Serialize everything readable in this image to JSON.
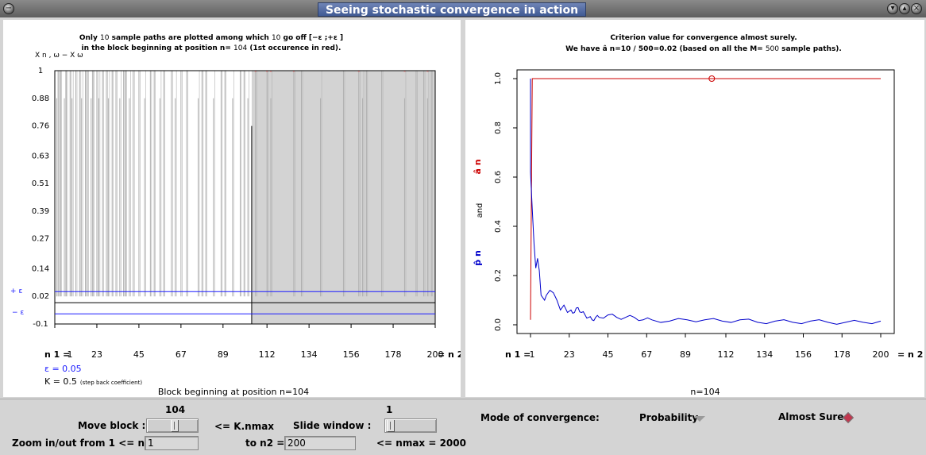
{
  "window": {
    "title": "Seeing stochastic convergence in action"
  },
  "left_panel": {
    "title_prefix": "Only ",
    "title_count": "10",
    "title_mid": " sample paths are plotted among which ",
    "title_off": "10",
    "title_suffix": " go off [−ε ;+ε ]",
    "title_line2_prefix": "in the block beginning at position n= ",
    "title_line2_pos": "104",
    "title_line2_suffix": " (1st occurence in red).",
    "ylabel": "X n , ω − X ω",
    "ytick_labels": [
      "1",
      "0.88",
      "0.76",
      "0.63",
      "0.51",
      "0.39",
      "0.27",
      "0.14",
      "0.02",
      "-0.1"
    ],
    "eps_plus_label": "+ ε",
    "eps_minus_label": "− ε",
    "n1_label": "n 1 =",
    "n2_label": "= n 2",
    "xtick_labels": [
      "1",
      "23",
      "45",
      "67",
      "89",
      "112",
      "134",
      "156",
      "178",
      "200"
    ],
    "epsilon_text": "ε = 0.05",
    "k_text": "K = 0.5",
    "k_note": "(step back coefficient)",
    "block_text": "Block beginning at position n=104",
    "colors": {
      "path": "#b0b0b0",
      "eps": "#1a1aff",
      "shade": "#d3d3d3",
      "red": "#ff8c8c"
    }
  },
  "right_panel": {
    "title_line1": "Criterion value for convergence almost surely.",
    "title_line2_prefix": "We have  â n=10 / 500=0.02 (based on all the M= ",
    "title_line2_m": "500",
    "title_line2_suffix": " sample paths).",
    "ylabel_p": "p̂ n",
    "ylabel_and": "and",
    "ylabel_a": "â n",
    "n1_label": "n 1 =",
    "n2_label": "= n 2",
    "bottom_text": "n=104",
    "colors": {
      "p_line": "#0000cc",
      "a_line": "#cc0000"
    }
  },
  "chart_data": [
    {
      "type": "line",
      "title": "Only 10 sample paths are plotted among which 10 go off [−ε ;+ε ] in the block beginning at position n= 104 (1st occurence in red).",
      "xlabel": "",
      "ylabel": "X n,ω − X ω",
      "xlim": [
        1,
        200
      ],
      "ylim": [
        -0.1,
        1
      ],
      "x_ticks": [
        1,
        23,
        45,
        67,
        89,
        112,
        134,
        156,
        178,
        200
      ],
      "y_ticks": [
        1,
        0.88,
        0.76,
        0.63,
        0.51,
        0.39,
        0.27,
        0.14,
        0.02,
        -0.1
      ],
      "epsilon": 0.05,
      "block_start": 104,
      "series": [
        {
          "values_note": "",
          "spike_positions": [
            2,
            3,
            4,
            6,
            7,
            9,
            10,
            12,
            14,
            15,
            17,
            18,
            20,
            21,
            23,
            24,
            26,
            28,
            29,
            31,
            33,
            35,
            37,
            38,
            40,
            42,
            45,
            48,
            51,
            53,
            56,
            58,
            62,
            64,
            67,
            70,
            76,
            78,
            80,
            84,
            88,
            90,
            94,
            98,
            100,
            102,
            106,
            112,
            114,
            126,
            130,
            140,
            152,
            160,
            162,
            164,
            172,
            184,
            190,
            194,
            196,
            198
          ]
        }
      ]
    },
    {
      "type": "line",
      "title": "Criterion value for convergence almost surely. We have  â n=10 / 500=0.02 (based on all the M= 500 sample paths).",
      "xlabel": "",
      "ylabel": "p̂ n and â n",
      "xlim": [
        1,
        200
      ],
      "ylim": [
        0,
        1
      ],
      "x_ticks": [
        1,
        23,
        45,
        67,
        89,
        112,
        134,
        156,
        178,
        200
      ],
      "y_ticks": [
        0.0,
        0.2,
        0.4,
        0.6,
        0.8,
        1.0
      ],
      "series": [
        {
          "values_note": "",
          "x": [
            1,
            2,
            3,
            4,
            5,
            6,
            7,
            8,
            9,
            10,
            12,
            14,
            16,
            18,
            20,
            22,
            24,
            26,
            28,
            30,
            32,
            34,
            36,
            38,
            40,
            45,
            50,
            55,
            60,
            65,
            70,
            80,
            90,
            100,
            110,
            120,
            130,
            140,
            150,
            160,
            170,
            180,
            190,
            200
          ],
          "values": [
            0.62,
            0.47,
            0.33,
            0.23,
            0.27,
            0.22,
            0.12,
            0.11,
            0.1,
            0.12,
            0.14,
            0.13,
            0.1,
            0.06,
            0.08,
            0.05,
            0.06,
            0.05,
            0.07,
            0.05,
            0.04,
            0.03,
            0.02,
            0.03,
            0.03,
            0.04,
            0.03,
            0.03,
            0.03,
            0.02,
            0.02,
            0.015,
            0.02,
            0.02,
            0.015,
            0.02,
            0.01,
            0.015,
            0.01,
            0.015,
            0.01,
            0.01,
            0.01,
            0.015
          ]
        },
        {
          "values_note": "",
          "x": [
            1,
            2,
            200
          ],
          "values": [
            0.02,
            1.0,
            1.0
          ]
        }
      ],
      "marker": {
        "x": 104,
        "y": 1.0
      }
    }
  ],
  "controls": {
    "move_block_label": "Move block :",
    "move_block_value": "104",
    "kmax_label": "<= K.nmax",
    "slide_window_label": "Slide window :",
    "slide_window_value": "1",
    "zoom_label": "Zoom in/out from 1 <= n1 =",
    "n1_value": "1",
    "to_n2_label": "to n2 =",
    "n2_value": "200",
    "nmax_label": "<= nmax = 2000",
    "mode_label": "Mode of convergence:",
    "probability_label": "Probability",
    "almost_sure_label": "Almost Sure"
  }
}
